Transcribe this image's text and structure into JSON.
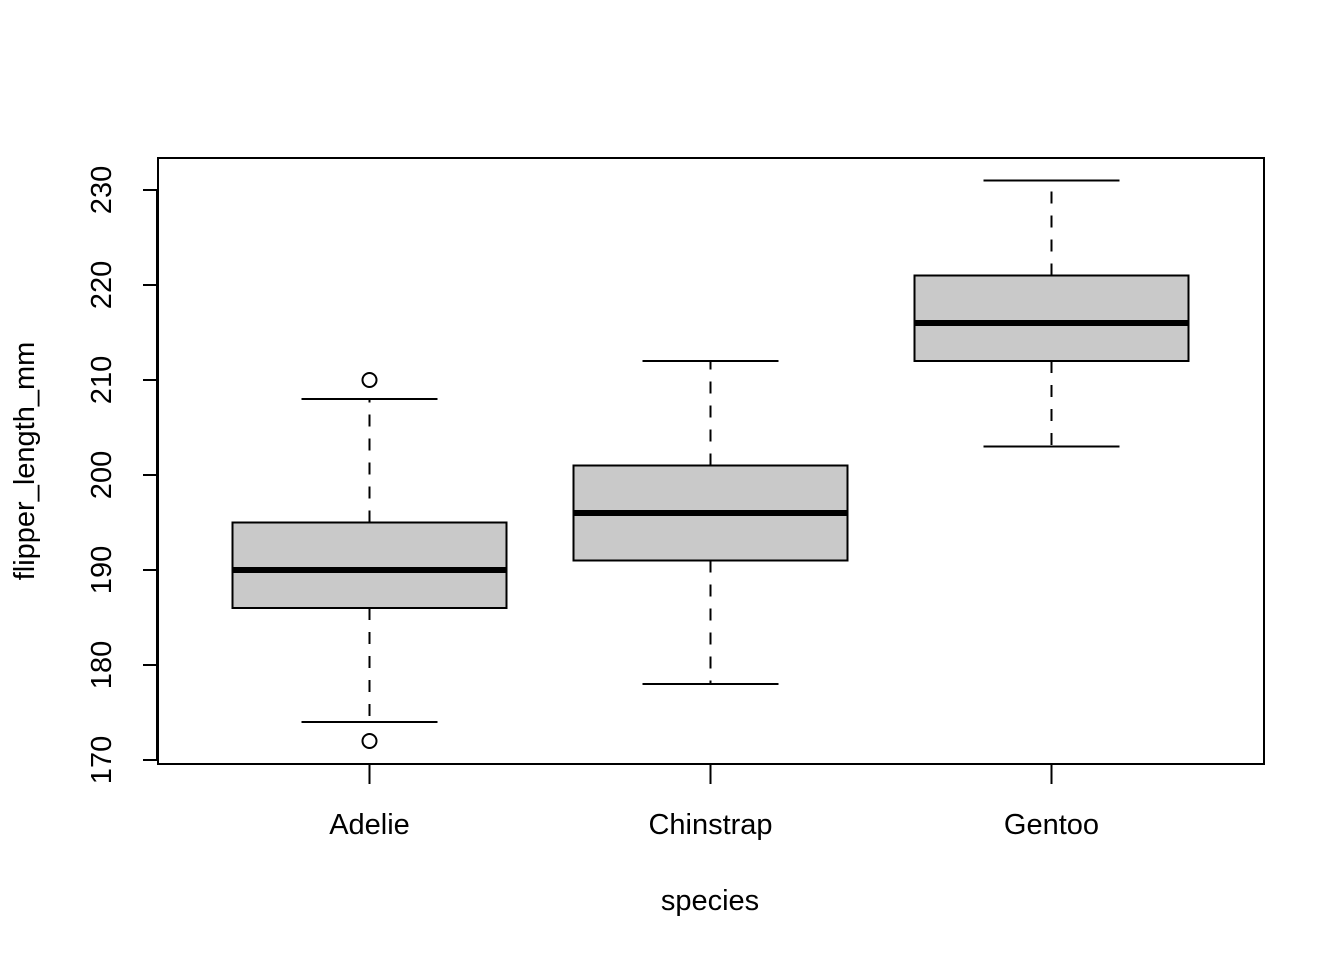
{
  "chart_data": {
    "type": "boxplot",
    "title": "",
    "xlabel": "species",
    "ylabel": "flipper_length_mm",
    "categories": [
      "Adelie",
      "Chinstrap",
      "Gentoo"
    ],
    "ylim": [
      169.6,
      233.4
    ],
    "yticks": [
      170,
      180,
      190,
      200,
      210,
      220,
      230
    ],
    "grid": false,
    "legend": "none",
    "boxes": [
      {
        "category": "Adelie",
        "whisker_low": 174,
        "q1": 186,
        "median": 190,
        "q3": 195,
        "whisker_high": 208,
        "outliers": [
          172,
          210
        ]
      },
      {
        "category": "Chinstrap",
        "whisker_low": 178,
        "q1": 191,
        "median": 196,
        "q3": 201,
        "whisker_high": 212,
        "outliers": []
      },
      {
        "category": "Gentoo",
        "whisker_low": 203,
        "q1": 212,
        "median": 216,
        "q3": 221,
        "whisker_high": 231,
        "outliers": []
      }
    ],
    "colors": {
      "box_fill": "#c9c9c9",
      "stroke": "#000000"
    }
  }
}
